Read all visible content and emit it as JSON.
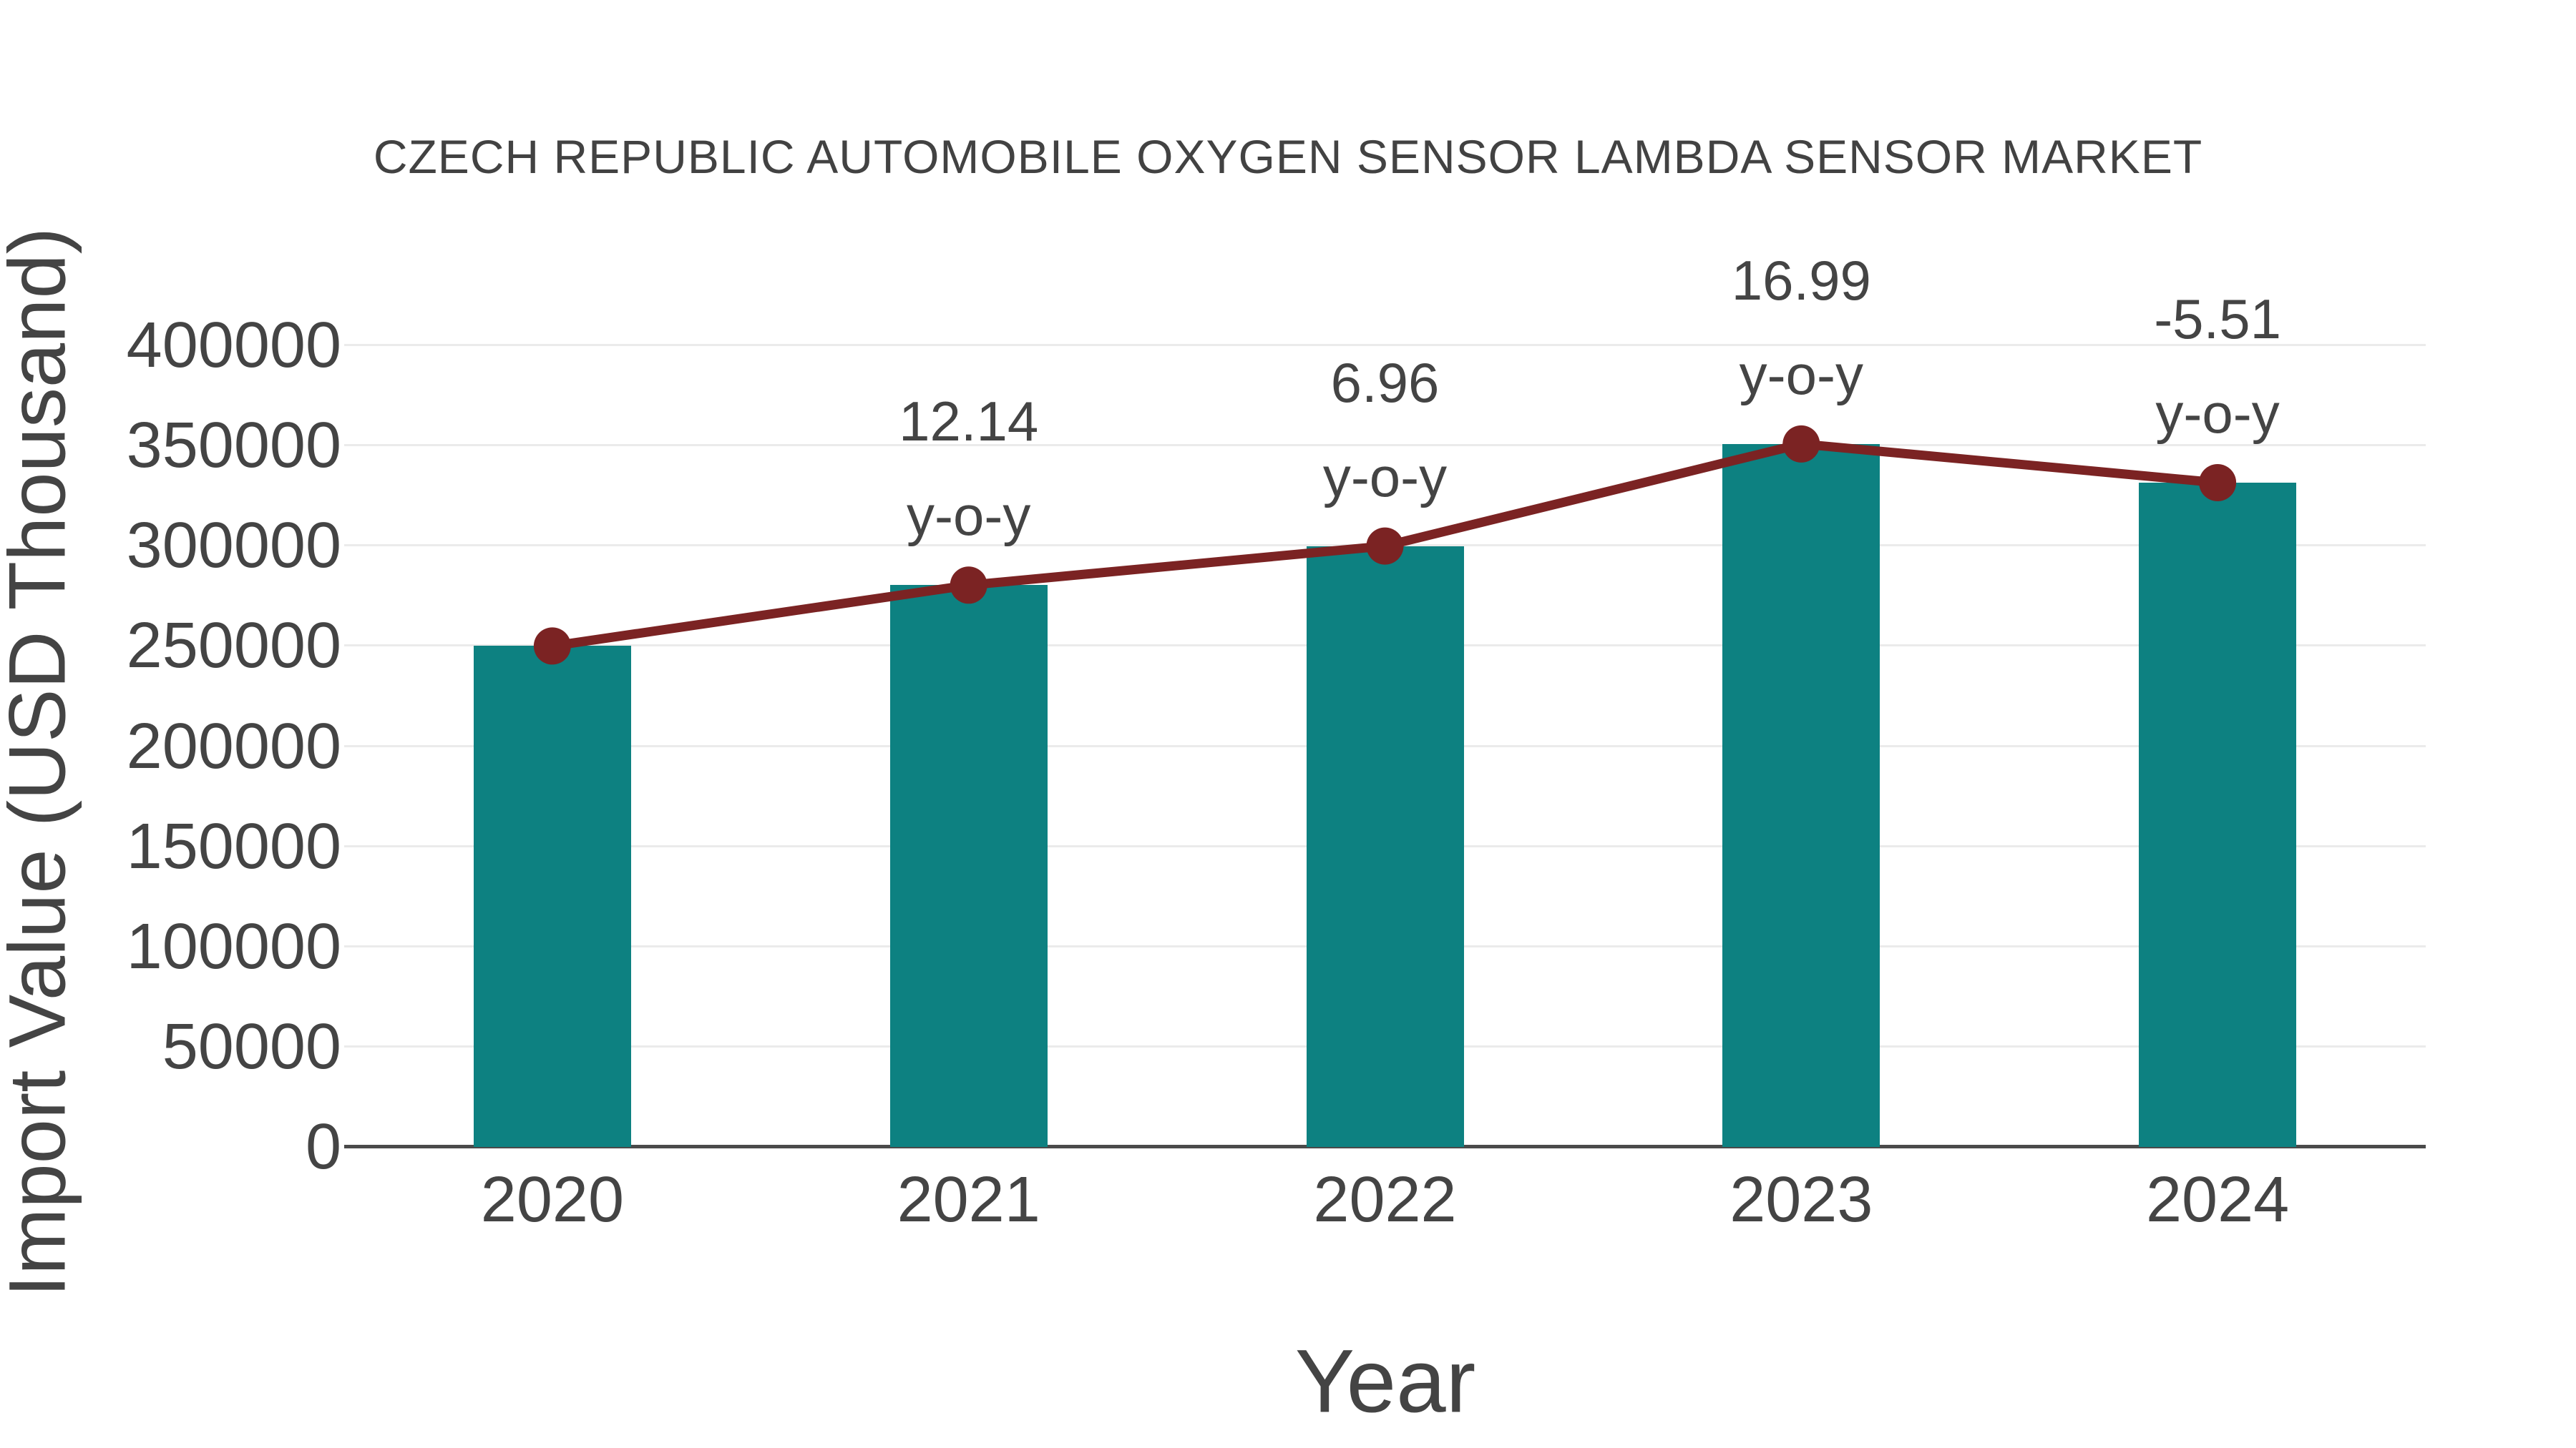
{
  "title": "CZECH REPUBLIC AUTOMOBILE OXYGEN SENSOR LAMBDA SENSOR MARKET",
  "chart_data": {
    "type": "bar",
    "title": "CZECH REPUBLIC AUTOMOBILE OXYGEN SENSOR LAMBDA SENSOR MARKET",
    "xlabel": "Year",
    "ylabel": "Import Value (USD Thousand)",
    "categories": [
      "2020",
      "2021",
      "2022",
      "2023",
      "2024"
    ],
    "series": [
      {
        "name": "Import Value bars",
        "type": "bar",
        "values": [
          250000,
          280350,
          299862,
          350807,
          331477
        ]
      },
      {
        "name": "Import Value trend line",
        "type": "line",
        "values": [
          250000,
          280350,
          299862,
          350807,
          331477
        ]
      }
    ],
    "yoy_percent": [
      null,
      12.14,
      6.96,
      16.99,
      -5.51
    ],
    "annotations": [
      {
        "category": "2021",
        "value_label": "12.14",
        "suffix_label": "y-o-y"
      },
      {
        "category": "2022",
        "value_label": "6.96",
        "suffix_label": "y-o-y"
      },
      {
        "category": "2023",
        "value_label": "16.99",
        "suffix_label": "y-o-y"
      },
      {
        "category": "2024",
        "value_label": "-5.51",
        "suffix_label": "y-o-y"
      }
    ],
    "yticks": [
      "0",
      "50000",
      "100000",
      "150000",
      "200000",
      "250000",
      "300000",
      "350000",
      "400000"
    ],
    "ylim": [
      0,
      400000
    ],
    "grid": true,
    "legend": "none",
    "colors": {
      "bar": "#0d8181",
      "line": "#7b2323",
      "marker": "#7b2323",
      "grid": "#ebebeb",
      "axis": "#4a4a4a",
      "text": "#444444",
      "background": "#ffffff"
    }
  }
}
